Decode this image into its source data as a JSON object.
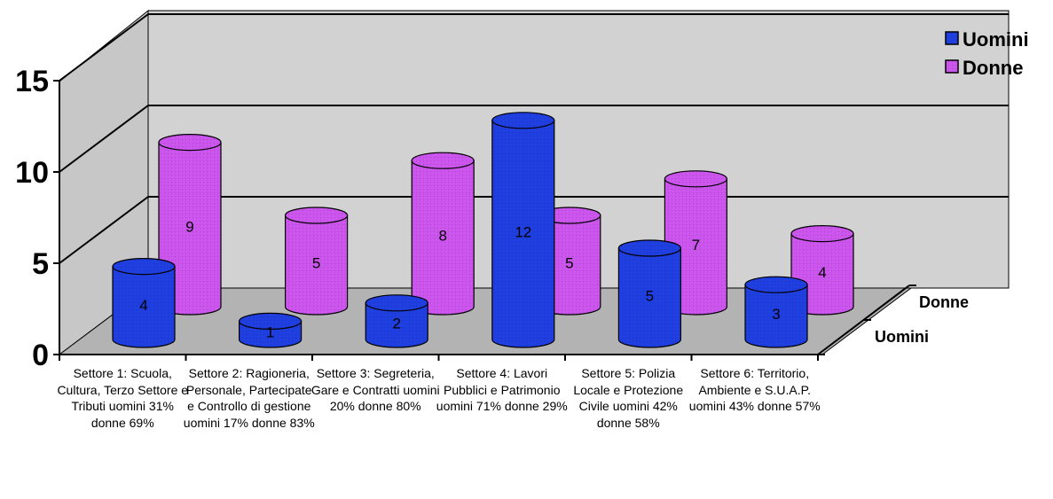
{
  "chart_data": {
    "type": "bar",
    "style": "3d-cylinder",
    "categories": [
      "Settore 1: Scuola, Cultura, Terzo Settore e Tributi uomini 31% donne 69%",
      "Settore 2: Ragioneria, Personale, Partecipate e Controllo di gestione uomini 17% donne 83%",
      "Settore 3: Segreteria, Gare e Contratti uomini 20% donne 80%",
      "Settore 4: Lavori Pubblici e Patrimonio uomini 71% donne 29%",
      "Settore 5: Polizia Locale e Protezione Civile uomini 42% donne 58%",
      "Settore 6: Territorio, Ambiente e S.U.A.P. uomini 43% donne 57%"
    ],
    "series": [
      {
        "name": "Uomini",
        "values": [
          4,
          1,
          2,
          12,
          5,
          3
        ],
        "color": "#1f3fe0"
      },
      {
        "name": "Donne",
        "values": [
          9,
          5,
          8,
          5,
          7,
          4
        ],
        "color": "#cc55ee"
      }
    ],
    "depth_labels": [
      "Uomini",
      "Donne"
    ],
    "ylim": [
      0,
      15
    ],
    "yticks": [
      "0",
      "5",
      "10",
      "15"
    ],
    "grid": true,
    "legend": "top-right",
    "title": "",
    "xlabel": "",
    "ylabel": ""
  }
}
